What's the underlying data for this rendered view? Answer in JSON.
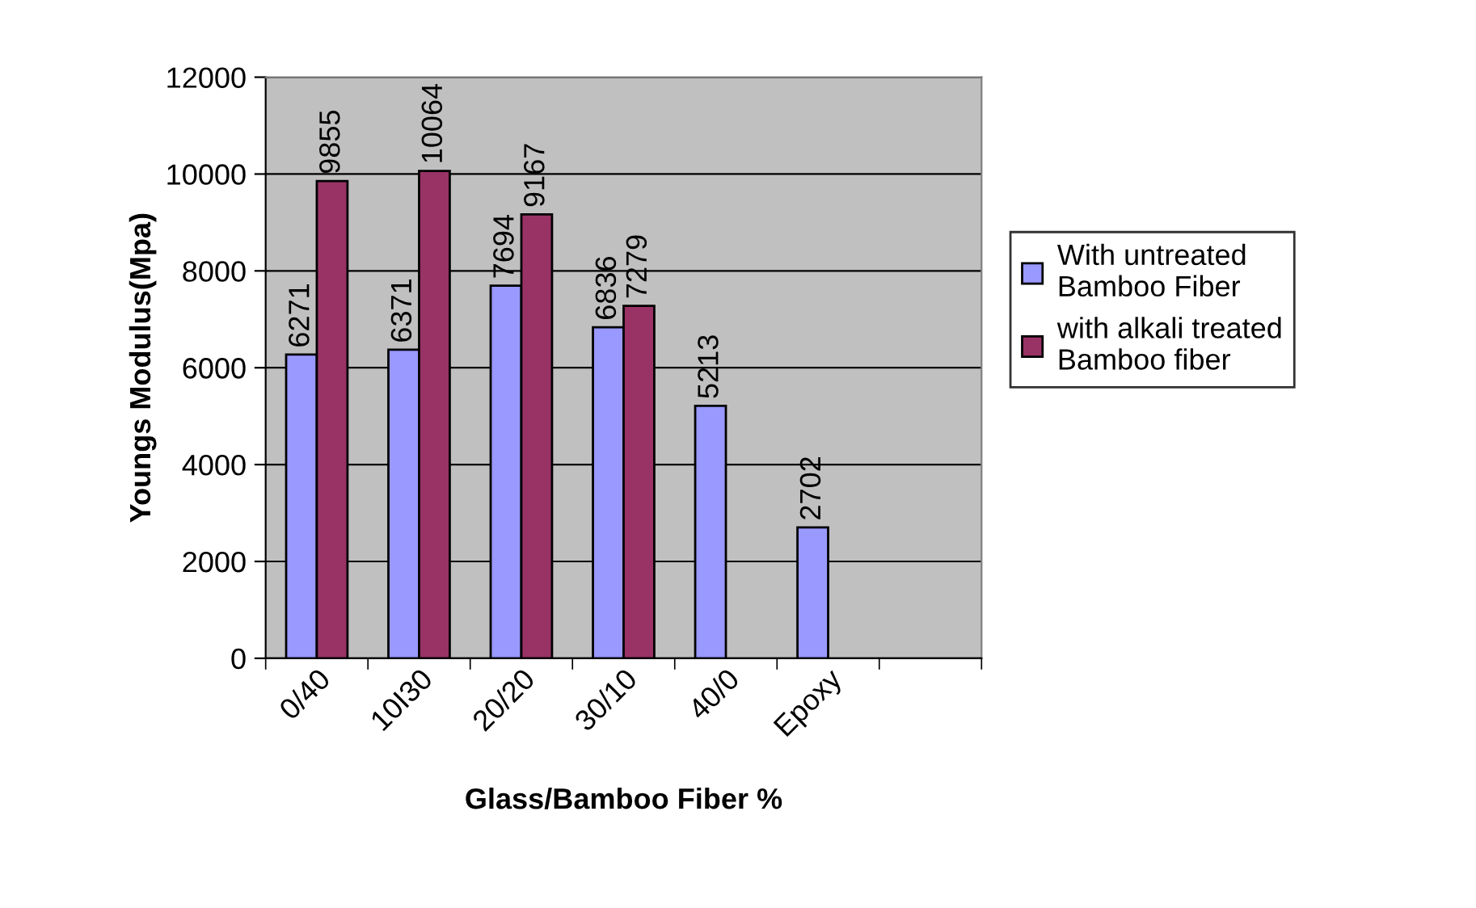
{
  "chart_data": {
    "type": "bar",
    "xlabel": "Glass/Bamboo Fiber %",
    "ylabel": "Youngs Modulus(Mpa)",
    "categories": [
      "0/40",
      "10I30",
      "20/20",
      "30/10",
      "40/0",
      "Epoxy",
      null
    ],
    "series": [
      {
        "name": "With untreated Bamboo Fiber",
        "color": "#9999ff",
        "values": [
          6271,
          6371,
          7694,
          6836,
          5213,
          2702,
          null
        ]
      },
      {
        "name": "with alkali treated Bamboo fiber",
        "color": "#993366",
        "values": [
          9855,
          10064,
          9167,
          7279,
          null,
          null,
          null
        ]
      }
    ],
    "ylim": [
      0,
      12000
    ],
    "yticks": [
      0,
      2000,
      4000,
      6000,
      8000,
      10000,
      12000
    ],
    "grid": "y",
    "legend": "right",
    "data_labels": true
  }
}
